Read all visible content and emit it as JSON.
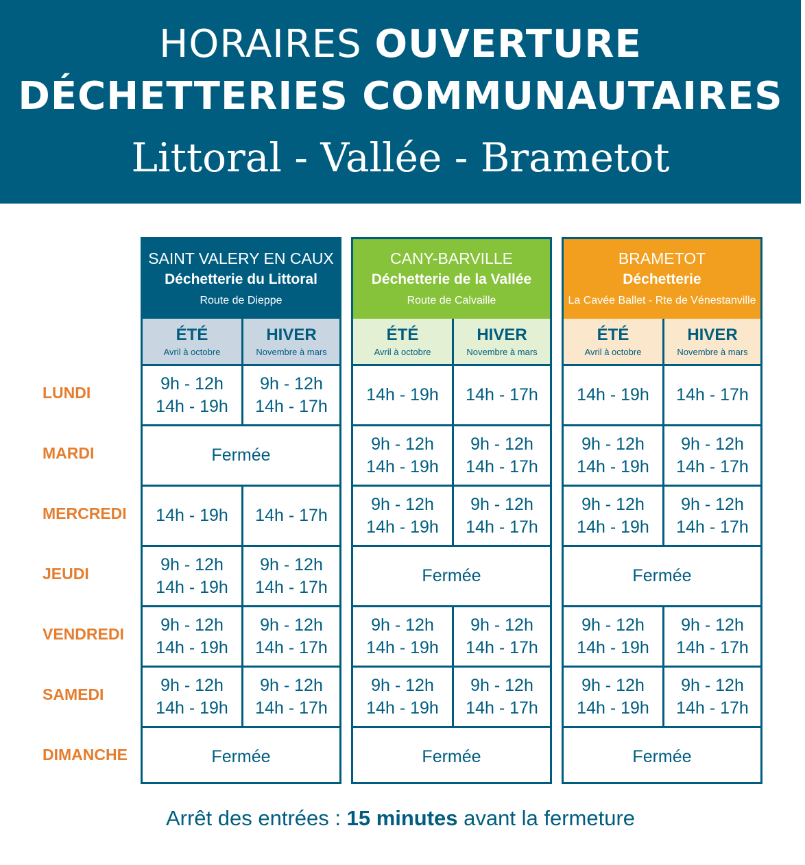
{
  "header": {
    "title_light": "HORAIRES",
    "title_bold": "OUVERTURE",
    "title_line2": "DÉCHETTERIES COMMUNAUTAIRES",
    "title_line3": "Littoral - Vallée - Brametot"
  },
  "days": [
    "LUNDI",
    "MARDI",
    "MERCREDI",
    "JEUDI",
    "VENDREDI",
    "SAMEDI",
    "DIMANCHE"
  ],
  "sites": [
    {
      "name": "SAINT VALERY EN CAUX",
      "subtitle": "Déchetterie du Littoral",
      "address": "Route de Dieppe",
      "head_color": "#005d80",
      "season_color": "#c9d6e1",
      "seasons": [
        {
          "title": "ÉTÉ",
          "sub": "Avril à octobre"
        },
        {
          "title": "HIVER",
          "sub": "Novembre à mars"
        }
      ],
      "rows": [
        [
          [
            "9h - 12h",
            "14h - 19h"
          ],
          [
            "9h - 12h",
            "14h - 17h"
          ]
        ],
        "Fermée",
        [
          [
            "14h - 19h"
          ],
          [
            "14h - 17h"
          ]
        ],
        [
          [
            "9h - 12h",
            "14h - 19h"
          ],
          [
            "9h - 12h",
            "14h - 17h"
          ]
        ],
        [
          [
            "9h - 12h",
            "14h - 19h"
          ],
          [
            "9h - 12h",
            "14h - 17h"
          ]
        ],
        [
          [
            "9h - 12h",
            "14h - 19h"
          ],
          [
            "9h - 12h",
            "14h - 17h"
          ]
        ],
        "Fermée"
      ]
    },
    {
      "name": "CANY-BARVILLE",
      "subtitle": "Déchetterie de la Vallée",
      "address": "Route de Calvaille",
      "head_color": "#86c23a",
      "season_color": "#e3f0d3",
      "seasons": [
        {
          "title": "ÉTÉ",
          "sub": "Avril à octobre"
        },
        {
          "title": "HIVER",
          "sub": "Novembre à mars"
        }
      ],
      "rows": [
        [
          [
            "14h - 19h"
          ],
          [
            "14h - 17h"
          ]
        ],
        [
          [
            "9h - 12h",
            "14h - 19h"
          ],
          [
            "9h - 12h",
            "14h - 17h"
          ]
        ],
        [
          [
            "9h - 12h",
            "14h - 19h"
          ],
          [
            "9h - 12h",
            "14h - 17h"
          ]
        ],
        "Fermée",
        [
          [
            "9h - 12h",
            "14h - 19h"
          ],
          [
            "9h - 12h",
            "14h - 17h"
          ]
        ],
        [
          [
            "9h - 12h",
            "14h - 19h"
          ],
          [
            "9h - 12h",
            "14h - 17h"
          ]
        ],
        "Fermée"
      ]
    },
    {
      "name": "BRAMETOT",
      "subtitle": "Déchetterie",
      "address": "La Cavée Ballet - Rte de Vénestanville",
      "head_color": "#f29f1f",
      "season_color": "#fbe7cc",
      "seasons": [
        {
          "title": "ÉTÉ",
          "sub": "Avril à octobre"
        },
        {
          "title": "HIVER",
          "sub": "Novembre à mars"
        }
      ],
      "rows": [
        [
          [
            "14h - 19h"
          ],
          [
            "14h - 17h"
          ]
        ],
        [
          [
            "9h - 12h",
            "14h - 19h"
          ],
          [
            "9h - 12h",
            "14h - 17h"
          ]
        ],
        [
          [
            "9h - 12h",
            "14h - 19h"
          ],
          [
            "9h - 12h",
            "14h - 17h"
          ]
        ],
        "Fermée",
        [
          [
            "9h - 12h",
            "14h - 19h"
          ],
          [
            "9h - 12h",
            "14h - 17h"
          ]
        ],
        [
          [
            "9h - 12h",
            "14h - 19h"
          ],
          [
            "9h - 12h",
            "14h - 17h"
          ]
        ],
        "Fermée"
      ]
    }
  ],
  "footer": {
    "before": "Arrêt des entrées : ",
    "bold": "15 minutes",
    "after": " avant la fermeture"
  }
}
